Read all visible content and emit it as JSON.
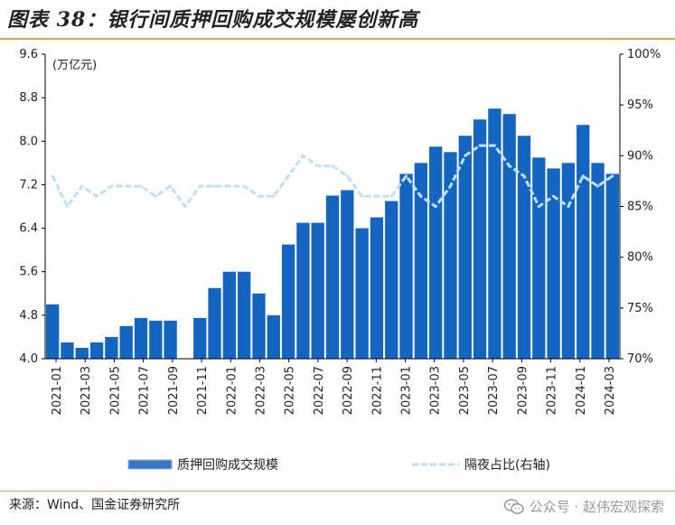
{
  "figure": {
    "title": "图表 38：银行间质押回购成交规模屡创新高",
    "source": "来源：Wind、国金证券研究所",
    "watermark": "公众号 · 赵伟宏观探索"
  },
  "colors": {
    "bar": "#1565c0",
    "bar_legend": "#3a78c4",
    "line": "#bfe0f5",
    "axis": "#000000",
    "rule": "#c9a96e"
  },
  "chart_data": {
    "type": "bar",
    "left_unit": "(万亿元)",
    "y_left": {
      "min": 4.0,
      "max": 9.6,
      "ticks": [
        "4.0",
        "4.8",
        "5.6",
        "6.4",
        "7.2",
        "8.0",
        "8.8",
        "9.6"
      ]
    },
    "y_right": {
      "min": 70,
      "max": 100,
      "ticks": [
        "70%",
        "75%",
        "80%",
        "85%",
        "90%",
        "95%",
        "100%"
      ]
    },
    "x_ticks": [
      "2021-01",
      "2021-03",
      "2021-05",
      "2021-07",
      "2021-09",
      "2021-11",
      "2022-01",
      "2022-03",
      "2022-05",
      "2022-07",
      "2022-09",
      "2022-11",
      "2023-01",
      "2023-03",
      "2023-05",
      "2023-07",
      "2023-09",
      "2023-11",
      "2024-01",
      "2024-03"
    ],
    "grid": false,
    "legend_position": "bottom",
    "series": [
      {
        "name": "质押回购成交规模",
        "axis": "left",
        "kind": "bar",
        "x": [
          "2021-01",
          "2021-02",
          "2021-03",
          "2021-04",
          "2021-05",
          "2021-06",
          "2021-07",
          "2021-08",
          "2021-09",
          "2021-10",
          "2021-11",
          "2021-12",
          "2022-01",
          "2022-02",
          "2022-03",
          "2022-04",
          "2022-05",
          "2022-06",
          "2022-07",
          "2022-08",
          "2022-09",
          "2022-10",
          "2022-11",
          "2022-12",
          "2023-01",
          "2023-02",
          "2023-03",
          "2023-04",
          "2023-05",
          "2023-06",
          "2023-07",
          "2023-08",
          "2023-09",
          "2023-10",
          "2023-11",
          "2023-12",
          "2024-01",
          "2024-02",
          "2024-03"
        ],
        "values": [
          5.0,
          4.3,
          4.2,
          4.3,
          4.4,
          4.6,
          4.75,
          4.7,
          4.7,
          4.0,
          4.75,
          5.3,
          5.6,
          5.6,
          5.2,
          4.8,
          6.1,
          6.5,
          6.5,
          7.0,
          7.1,
          6.4,
          6.6,
          6.9,
          7.4,
          7.6,
          7.9,
          7.8,
          8.1,
          8.4,
          8.6,
          8.5,
          8.1,
          7.7,
          7.5,
          7.6,
          8.3,
          7.6,
          7.4
        ]
      },
      {
        "name": "隔夜占比(右轴)",
        "axis": "right",
        "kind": "line",
        "x": [
          "2021-01",
          "2021-02",
          "2021-03",
          "2021-04",
          "2021-05",
          "2021-06",
          "2021-07",
          "2021-08",
          "2021-09",
          "2021-10",
          "2021-11",
          "2021-12",
          "2022-01",
          "2022-02",
          "2022-03",
          "2022-04",
          "2022-05",
          "2022-06",
          "2022-07",
          "2022-08",
          "2022-09",
          "2022-10",
          "2022-11",
          "2022-12",
          "2023-01",
          "2023-02",
          "2023-03",
          "2023-04",
          "2023-05",
          "2023-06",
          "2023-07",
          "2023-08",
          "2023-09",
          "2023-10",
          "2023-11",
          "2023-12",
          "2024-01",
          "2024-02",
          "2024-03"
        ],
        "values": [
          88,
          85,
          87,
          86,
          87,
          87,
          87,
          86,
          87,
          85,
          87,
          87,
          87,
          87,
          86,
          86,
          88,
          90,
          89,
          89,
          88,
          86,
          86,
          86,
          88,
          86,
          85,
          87,
          90,
          91,
          91,
          89,
          88,
          85,
          86,
          85,
          88,
          87,
          88
        ]
      }
    ]
  }
}
